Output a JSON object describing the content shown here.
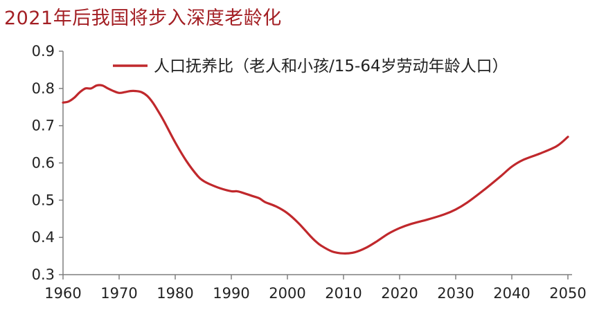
{
  "title": "2021年后我国将步入深度老龄化",
  "chart_data": {
    "type": "line",
    "title": "2021年后我国将步入深度老龄化",
    "xlabel": "",
    "ylabel": "",
    "xlim": [
      1960,
      2050
    ],
    "ylim": [
      0.3,
      0.9
    ],
    "xticks": [
      "1960",
      "1970",
      "1980",
      "1990",
      "2000",
      "2010",
      "2020",
      "2030",
      "2040",
      "2050"
    ],
    "yticks": [
      "0.9",
      "0.8",
      "0.7",
      "0.6",
      "0.5",
      "0.4",
      "0.3"
    ],
    "grid": false,
    "legend_position": "top-center",
    "series": [
      {
        "name": "人口抚养比（老人和小孩/15-64岁劳动年龄人口）",
        "color": "#c0282c",
        "x": [
          1960,
          1961,
          1962,
          1963,
          1964,
          1965,
          1966,
          1967,
          1968,
          1969,
          1970,
          1971,
          1972,
          1973,
          1974,
          1975,
          1976,
          1977,
          1978,
          1980,
          1982,
          1984,
          1985,
          1986,
          1988,
          1990,
          1991,
          1992,
          1994,
          1995,
          1996,
          1998,
          2000,
          2002,
          2004,
          2005,
          2006,
          2008,
          2010,
          2012,
          2014,
          2016,
          2018,
          2020,
          2022,
          2025,
          2028,
          2030,
          2032,
          2035,
          2038,
          2040,
          2042,
          2045,
          2048,
          2050
        ],
        "y": [
          0.762,
          0.765,
          0.775,
          0.79,
          0.8,
          0.8,
          0.808,
          0.808,
          0.8,
          0.793,
          0.788,
          0.79,
          0.793,
          0.793,
          0.79,
          0.78,
          0.762,
          0.738,
          0.712,
          0.655,
          0.605,
          0.565,
          0.552,
          0.544,
          0.532,
          0.524,
          0.524,
          0.52,
          0.51,
          0.505,
          0.495,
          0.483,
          0.465,
          0.438,
          0.405,
          0.39,
          0.378,
          0.362,
          0.357,
          0.36,
          0.372,
          0.39,
          0.41,
          0.425,
          0.436,
          0.448,
          0.462,
          0.475,
          0.493,
          0.527,
          0.564,
          0.59,
          0.608,
          0.625,
          0.645,
          0.67
        ]
      }
    ]
  }
}
